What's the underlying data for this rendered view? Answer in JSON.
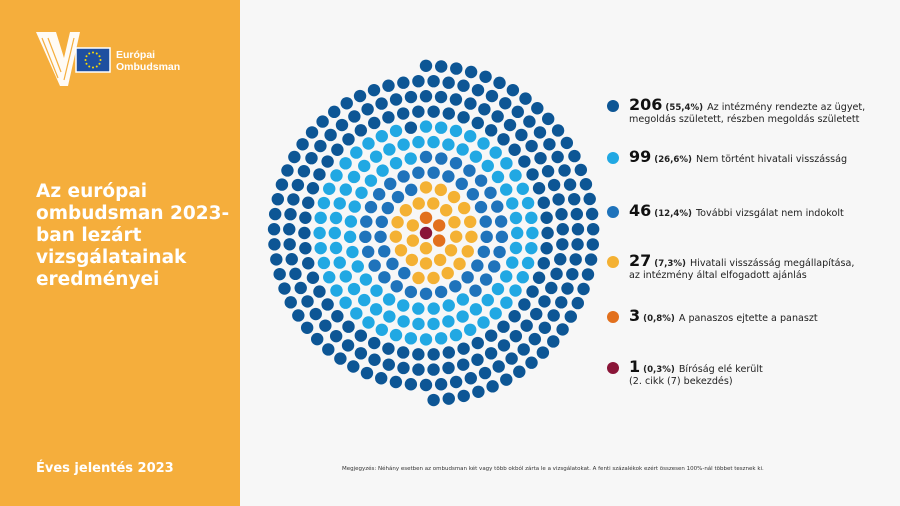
{
  "brand": {
    "logo_line1": "Európai",
    "logo_line2": "Ombudsman"
  },
  "title": "Az európai ombudsman 2023-ban lezárt vizsgálatainak eredményei",
  "report_label": "Éves jelentés 2023",
  "footnote": "Megjegyzés: Néhány esetben az ombudsman két vagy több okból zárta le a vizsgálatokat. A fenti százalékok ezért összesen 100%-nál többet tesznek ki.",
  "colors": {
    "panel": "#f5ae3c",
    "background": "#f7f7f7",
    "resolved": "#0d5695",
    "no_maladministration": "#21a8e3",
    "no_further_inquiry": "#1f73bb",
    "maladministration": "#f4b133",
    "withdrawn": "#e2701d",
    "court": "#8a1538"
  },
  "chart_data": {
    "type": "dot-circle",
    "title": "Az európai ombudsman 2023-ban lezárt vizsgálatainak eredményei",
    "series": [
      {
        "count": 206,
        "percent": "(55,4%)",
        "label_lines": [
          "Az intézmény rendezte az ügyet,",
          "megoldás született, részben megoldás született"
        ],
        "color_key": "resolved"
      },
      {
        "count": 99,
        "percent": "(26,6%)",
        "label_lines": [
          "Nem történt hivatali visszásság"
        ],
        "color_key": "no_maladministration"
      },
      {
        "count": 46,
        "percent": "(12,4%)",
        "label_lines": [
          "További vizsgálat nem indokolt"
        ],
        "color_key": "no_further_inquiry"
      },
      {
        "count": 27,
        "percent": "(7,3%)",
        "label_lines": [
          "Hivatali visszásság megállapítása,",
          "az intézmény által elfogadott ajánlás"
        ],
        "color_key": "maladministration"
      },
      {
        "count": 3,
        "percent": "(0,8%)",
        "label_lines": [
          "A panaszos ejtette a panaszt"
        ],
        "color_key": "withdrawn"
      },
      {
        "count": 1,
        "percent": "(0,3%)",
        "label_lines": [
          "Bíróság elé került",
          "(2. cikk (7) bekezdés)"
        ],
        "color_key": "court"
      }
    ]
  }
}
